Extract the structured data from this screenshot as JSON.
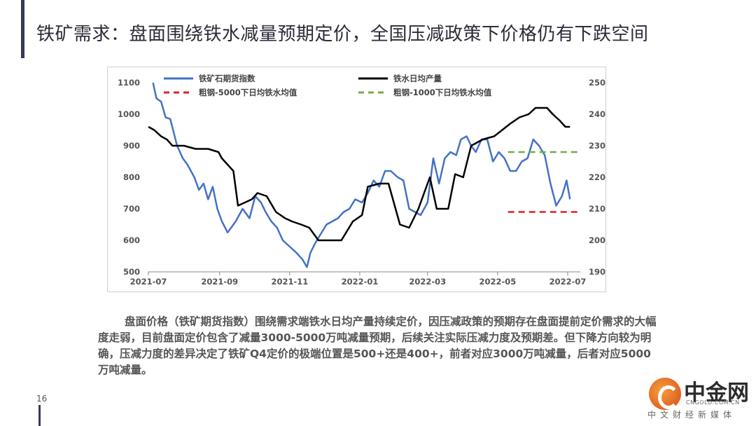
{
  "slide": {
    "title": "铁矿需求：盘面围绕铁水减量预期定价，全国压减政策下价格仍有下跌空间",
    "page_number": "16",
    "body_text": "盘面价格（铁矿期货指数）围绕需求端铁水日均产量持续定价，因压减政策的预期存在盘面提前定价需求的大幅度走弱，目前盘面定价包含了减量3000-5000万吨减量预期，后续关注实际压减力度及预期差。但下降方向较为明确，压减力度的差异决定了铁矿Q4定价的极端位置是500+还是400+，前者对应3000万吨减量，后者对应5000万吨减量。"
  },
  "logo": {
    "name_cn": "中金网",
    "domain": "CNGOLD.COM.CN",
    "tagline": "中文财经新媒体"
  },
  "chart_data": {
    "type": "line",
    "title": "",
    "xlabel": "",
    "ylabel": "",
    "legend_placement": "top",
    "grid": false,
    "x_ticks": [
      "2021-07",
      "2021-09",
      "2021-11",
      "2022-01",
      "2022-03",
      "2022-05",
      "2022-07"
    ],
    "x_range": [
      "2021-07-01",
      "2022-07-01"
    ],
    "y_left": {
      "range": [
        500,
        1100
      ],
      "ticks": [
        500,
        600,
        700,
        800,
        900,
        1000,
        1100
      ]
    },
    "y_right": {
      "range": [
        190,
        250
      ],
      "ticks": [
        190,
        200,
        210,
        220,
        230,
        240,
        250
      ]
    },
    "series": [
      {
        "name": "铁矿石期货指数",
        "axis": "left",
        "color": "#4472C4",
        "style": "solid",
        "points": [
          [
            "2021-07-05",
            1100
          ],
          [
            "2021-07-08",
            1050
          ],
          [
            "2021-07-12",
            1040
          ],
          [
            "2021-07-16",
            990
          ],
          [
            "2021-07-20",
            985
          ],
          [
            "2021-07-26",
            900
          ],
          [
            "2021-07-31",
            860
          ],
          [
            "2021-08-04",
            840
          ],
          [
            "2021-08-10",
            800
          ],
          [
            "2021-08-14",
            760
          ],
          [
            "2021-08-18",
            780
          ],
          [
            "2021-08-22",
            730
          ],
          [
            "2021-08-26",
            770
          ],
          [
            "2021-08-30",
            700
          ],
          [
            "2021-09-03",
            660
          ],
          [
            "2021-09-08",
            625
          ],
          [
            "2021-09-15",
            660
          ],
          [
            "2021-09-21",
            700
          ],
          [
            "2021-09-27",
            670
          ],
          [
            "2021-10-02",
            740
          ],
          [
            "2021-10-07",
            720
          ],
          [
            "2021-10-11",
            690
          ],
          [
            "2021-10-16",
            660
          ],
          [
            "2021-10-21",
            640
          ],
          [
            "2021-10-26",
            600
          ],
          [
            "2021-11-01",
            580
          ],
          [
            "2021-11-07",
            560
          ],
          [
            "2021-11-12",
            540
          ],
          [
            "2021-11-16",
            515
          ],
          [
            "2021-11-19",
            560
          ],
          [
            "2021-11-23",
            590
          ],
          [
            "2021-11-28",
            620
          ],
          [
            "2021-12-03",
            650
          ],
          [
            "2021-12-08",
            660
          ],
          [
            "2021-12-13",
            670
          ],
          [
            "2021-12-18",
            690
          ],
          [
            "2021-12-23",
            700
          ],
          [
            "2021-12-28",
            730
          ],
          [
            "2022-01-03",
            720
          ],
          [
            "2022-01-08",
            750
          ],
          [
            "2022-01-13",
            790
          ],
          [
            "2022-01-18",
            770
          ],
          [
            "2022-01-23",
            820
          ],
          [
            "2022-01-28",
            820
          ],
          [
            "2022-02-03",
            800
          ],
          [
            "2022-02-08",
            790
          ],
          [
            "2022-02-13",
            700
          ],
          [
            "2022-02-18",
            690
          ],
          [
            "2022-02-23",
            680
          ],
          [
            "2022-03-01",
            720
          ],
          [
            "2022-03-06",
            860
          ],
          [
            "2022-03-11",
            780
          ],
          [
            "2022-03-16",
            860
          ],
          [
            "2022-03-21",
            880
          ],
          [
            "2022-03-26",
            870
          ],
          [
            "2022-03-30",
            920
          ],
          [
            "2022-04-04",
            930
          ],
          [
            "2022-04-08",
            900
          ],
          [
            "2022-04-12",
            880
          ],
          [
            "2022-04-17",
            920
          ],
          [
            "2022-04-22",
            920
          ],
          [
            "2022-04-27",
            850
          ],
          [
            "2022-05-02",
            880
          ],
          [
            "2022-05-07",
            860
          ],
          [
            "2022-05-12",
            820
          ],
          [
            "2022-05-17",
            820
          ],
          [
            "2022-05-22",
            850
          ],
          [
            "2022-05-27",
            860
          ],
          [
            "2022-06-01",
            920
          ],
          [
            "2022-06-06",
            900
          ],
          [
            "2022-06-11",
            870
          ],
          [
            "2022-06-16",
            780
          ],
          [
            "2022-06-21",
            710
          ],
          [
            "2022-06-26",
            740
          ],
          [
            "2022-06-30",
            790
          ],
          [
            "2022-07-03",
            730
          ]
        ]
      },
      {
        "name": "铁水日均产量",
        "axis": "right",
        "color": "#000000",
        "style": "solid",
        "points": [
          [
            "2021-07-01",
            236
          ],
          [
            "2021-07-06",
            235
          ],
          [
            "2021-07-12",
            233
          ],
          [
            "2021-07-17",
            232
          ],
          [
            "2021-07-22",
            230
          ],
          [
            "2021-08-01",
            230
          ],
          [
            "2021-08-11",
            229
          ],
          [
            "2021-08-22",
            229
          ],
          [
            "2021-08-31",
            228
          ],
          [
            "2021-09-03",
            226
          ],
          [
            "2021-09-08",
            224
          ],
          [
            "2021-09-13",
            222
          ],
          [
            "2021-09-17",
            211
          ],
          [
            "2021-09-23",
            212
          ],
          [
            "2021-09-29",
            213
          ],
          [
            "2021-10-04",
            215
          ],
          [
            "2021-10-12",
            214
          ],
          [
            "2021-10-20",
            209
          ],
          [
            "2021-10-28",
            207
          ],
          [
            "2021-11-03",
            206
          ],
          [
            "2021-11-11",
            205
          ],
          [
            "2021-11-18",
            204
          ],
          [
            "2021-11-26",
            200
          ],
          [
            "2021-12-06",
            200
          ],
          [
            "2021-12-16",
            200
          ],
          [
            "2021-12-26",
            206
          ],
          [
            "2022-01-03",
            208
          ],
          [
            "2022-01-08",
            217
          ],
          [
            "2022-01-18",
            218
          ],
          [
            "2022-01-26",
            218
          ],
          [
            "2022-02-05",
            205
          ],
          [
            "2022-02-13",
            204
          ],
          [
            "2022-02-21",
            210
          ],
          [
            "2022-03-03",
            220
          ],
          [
            "2022-03-09",
            210
          ],
          [
            "2022-03-19",
            210
          ],
          [
            "2022-03-25",
            221
          ],
          [
            "2022-04-01",
            220
          ],
          [
            "2022-04-08",
            230
          ],
          [
            "2022-04-18",
            232
          ],
          [
            "2022-04-28",
            233
          ],
          [
            "2022-05-05",
            235
          ],
          [
            "2022-05-12",
            237
          ],
          [
            "2022-05-20",
            239
          ],
          [
            "2022-05-28",
            240
          ],
          [
            "2022-06-03",
            242
          ],
          [
            "2022-06-13",
            242
          ],
          [
            "2022-06-18",
            240
          ],
          [
            "2022-06-24",
            238
          ],
          [
            "2022-06-29",
            236
          ],
          [
            "2022-07-03",
            236
          ]
        ]
      },
      {
        "name": "粗钢-5000下日均铁水均值",
        "axis": "right",
        "color": "#E02020",
        "style": "dashed",
        "points": [
          [
            "2022-05-10",
            209
          ],
          [
            "2022-07-10",
            209
          ]
        ]
      },
      {
        "name": "粗钢-1000下日均铁水均值",
        "axis": "right",
        "color": "#70AD47",
        "style": "dashed",
        "points": [
          [
            "2022-05-10",
            228
          ],
          [
            "2022-07-10",
            228
          ]
        ]
      }
    ]
  }
}
